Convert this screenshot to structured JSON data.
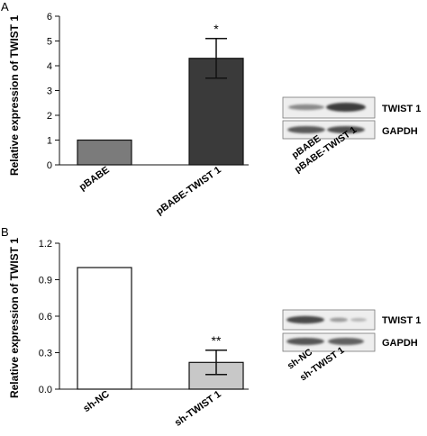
{
  "chart_data": [
    {
      "panel_label": "A",
      "type": "bar",
      "ylabel": "Relative expression of TWIST 1",
      "ylim": [
        0,
        6
      ],
      "yticks": [
        0,
        1,
        2,
        3,
        4,
        5,
        6
      ],
      "categories": [
        "pBABE",
        "pBABE-TWIST 1"
      ],
      "values": [
        1.0,
        4.3
      ],
      "errors": [
        0,
        0.8
      ],
      "bar_colors": [
        "#7b7b7b",
        "#3a3a3a"
      ],
      "significance": [
        "",
        "*"
      ],
      "blot": {
        "proteins": [
          "TWIST 1",
          "GAPDH"
        ],
        "lanes": [
          "pBABE",
          "pBABE-TWIST 1"
        ]
      }
    },
    {
      "panel_label": "B",
      "type": "bar",
      "ylabel": "Relative expression of TWIST 1",
      "ylim": [
        0,
        1.2
      ],
      "yticks": [
        "0.0",
        "0.3",
        "0.6",
        "0.9",
        "1.2"
      ],
      "categories": [
        "sh-NC",
        "sh-TWIST 1"
      ],
      "values": [
        1.0,
        0.22
      ],
      "errors": [
        0,
        0.1
      ],
      "bar_colors": [
        "#ffffff",
        "#c8c8c8"
      ],
      "significance": [
        "",
        "**"
      ],
      "blot": {
        "proteins": [
          "TWIST 1",
          "GAPDH"
        ],
        "lanes": [
          "sh-NC",
          "sh-TWIST 1"
        ]
      }
    }
  ]
}
